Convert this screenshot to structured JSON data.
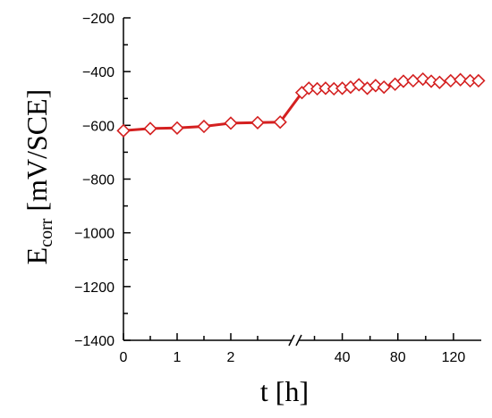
{
  "chart_data": {
    "type": "line",
    "xlabel": "t [h]",
    "ylabel_main": "E",
    "ylabel_sub": "corr",
    "ylabel_unit": " [mV/SCE]",
    "ylim": [
      -1400,
      -200
    ],
    "y_ticks": [
      -200,
      -400,
      -600,
      -800,
      -1000,
      -1200,
      -1400
    ],
    "axis_break": true,
    "x_segments": [
      {
        "range": [
          0,
          3
        ],
        "ticks": [
          0,
          1,
          2
        ]
      },
      {
        "range": [
          10,
          140
        ],
        "ticks": [
          40,
          80,
          120
        ]
      }
    ],
    "series": [
      {
        "marker": "diamond-open",
        "color": "#d42020",
        "points": [
          [
            0,
            -620
          ],
          [
            0.5,
            -612
          ],
          [
            1,
            -610
          ],
          [
            1.5,
            -604
          ],
          [
            2,
            -592
          ],
          [
            2.5,
            -590
          ],
          [
            2.92,
            -588
          ],
          [
            11,
            -478
          ],
          [
            16,
            -462
          ],
          [
            22,
            -464
          ],
          [
            28,
            -462
          ],
          [
            34,
            -464
          ],
          [
            40,
            -462
          ],
          [
            46,
            -458
          ],
          [
            52,
            -449
          ],
          [
            58,
            -462
          ],
          [
            64,
            -452
          ],
          [
            70,
            -458
          ],
          [
            78,
            -447
          ],
          [
            84,
            -436
          ],
          [
            91,
            -434
          ],
          [
            98,
            -428
          ],
          [
            104,
            -436
          ],
          [
            110,
            -440
          ],
          [
            118,
            -434
          ],
          [
            125,
            -430
          ],
          [
            132,
            -434
          ],
          [
            138,
            -434
          ]
        ]
      }
    ]
  }
}
